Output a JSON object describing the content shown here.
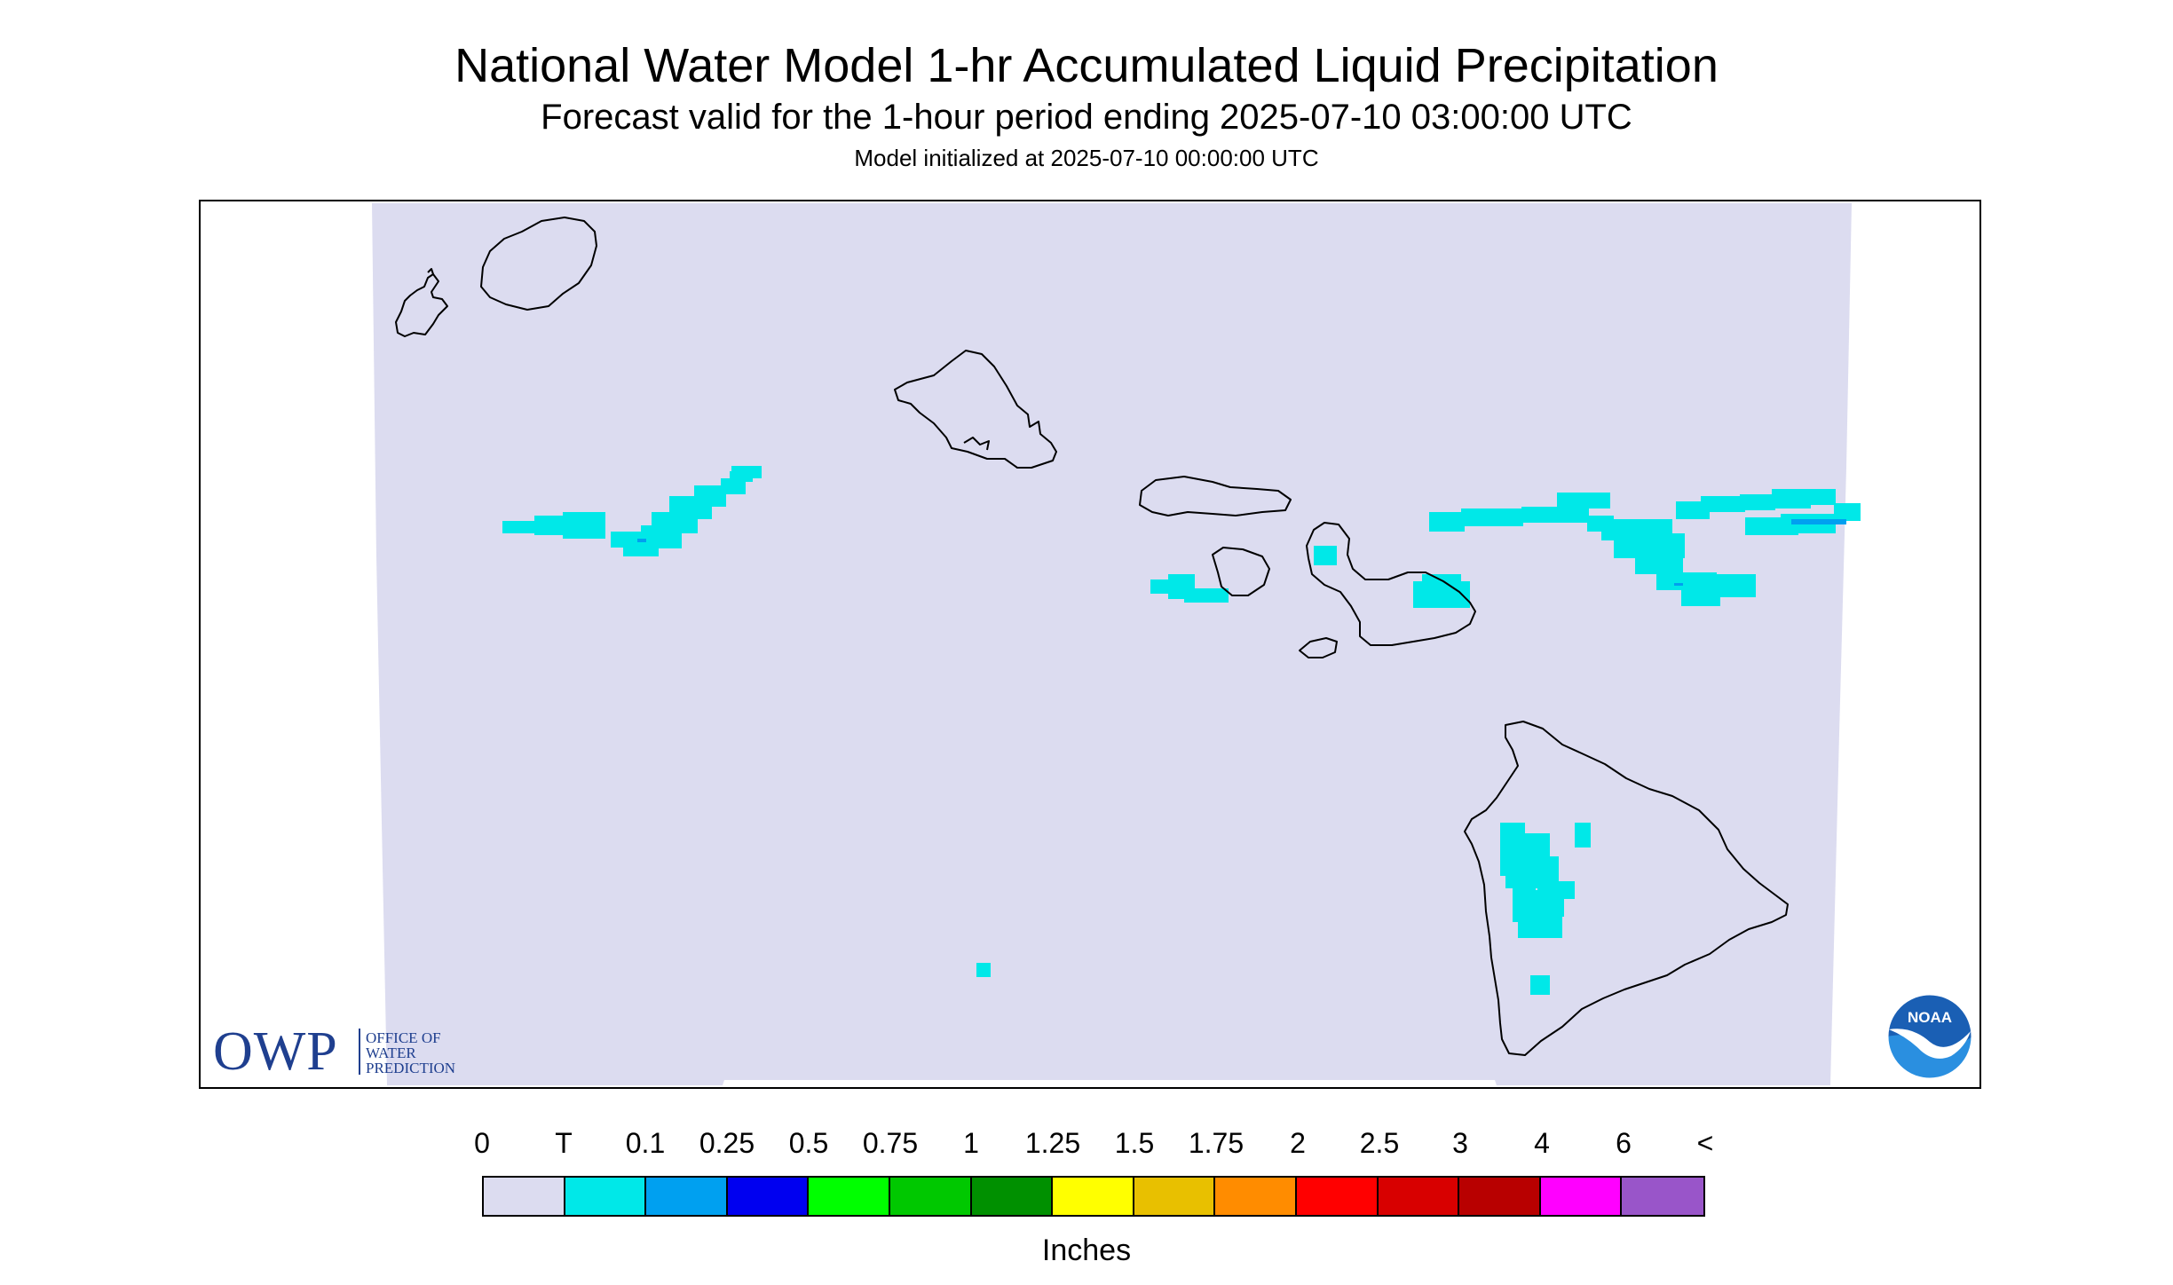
{
  "header": {
    "title": "National Water Model 1-hr Accumulated Liquid Precipitation",
    "subtitle": "Forecast valid for the 1-hour period ending 2025-07-10 03:00:00 UTC",
    "init": "Model initialized at 2025-07-10 00:00:00 UTC"
  },
  "logos": {
    "owp_short": "OWP",
    "owp_line1": "OFFICE OF",
    "owp_line2": "WATER",
    "owp_line3": "PREDICTION",
    "noaa": "NOAA"
  },
  "legend": {
    "unit": "Inches",
    "labels": [
      "0",
      "T",
      "0.1",
      "0.25",
      "0.5",
      "0.75",
      "1",
      "1.25",
      "1.5",
      "1.75",
      "2",
      "2.5",
      "3",
      "4",
      "6",
      "<"
    ],
    "colors": [
      "#dcdcf0",
      "#00e8e8",
      "#00a0f0",
      "#0000f0",
      "#00ff00",
      "#00c800",
      "#009000",
      "#ffff00",
      "#e8c000",
      "#ff8c00",
      "#ff0000",
      "#d80000",
      "#b80000",
      "#ff00ff",
      "#9955c9"
    ]
  },
  "colors": {
    "domain_fill": "#dcdcf0",
    "trace": "#00e8e8",
    "light": "#00a0f0",
    "coast": "#000000"
  }
}
